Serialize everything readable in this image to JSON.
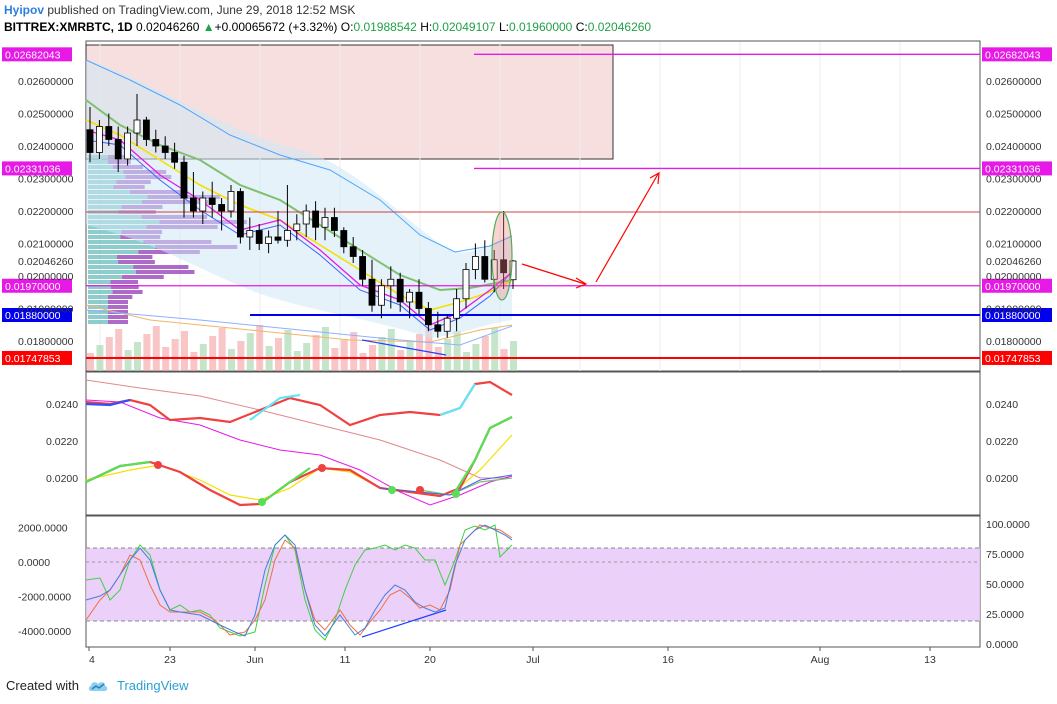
{
  "header": {
    "author": "Hyipov",
    "published_text": "published on TradingView.com, June 29, 2018 12:52 MSK",
    "symbol": "BITTREX:XMRBTC, 1D",
    "last": "0.02046260",
    "change": "+0.00065672 (+3.32%)",
    "o_label": "O:",
    "open": "0.01988542",
    "h_label": "H:",
    "high": "0.02049107",
    "l_label": "L:",
    "low": "0.01960000",
    "c_label": "C:",
    "close": "0.02046260"
  },
  "footer": {
    "created_with": "Created with",
    "brand": "TradingView",
    "logo_icon": "cloud-icon"
  },
  "colors": {
    "up": "#ffffff",
    "down": "#000000",
    "magenta": "#e619e6",
    "blue": "#0000ee",
    "red": "#ff0000",
    "yellow": "#f5e000",
    "green": "#7fc06f",
    "lightblue": "#4da6ff",
    "vp_purple": "#a050c0",
    "vp_teal": "#70c0c0",
    "zone_pink": "#f6d4d4",
    "band_lavender": "#e8c8f8"
  },
  "chart_data": [
    {
      "type": "candlestick",
      "panel": "price",
      "y_ticks": [
        "0.02600000",
        "0.02500000",
        "0.02400000",
        "0.02300000",
        "0.02200000",
        "0.02100000",
        "0.02046260",
        "0.02000000",
        "0.01900000",
        "0.01800000"
      ],
      "x_ticks": [
        "4",
        "23",
        "Jun",
        "11",
        "20",
        "Jul",
        "16",
        "Aug",
        "13"
      ],
      "ylim": [
        0.0172,
        0.0272
      ],
      "levels": [
        {
          "value": 0.02682043,
          "label": "0.02682043",
          "color": "#e619e6"
        },
        {
          "value": 0.02331036,
          "label": "0.02331036",
          "color": "#e619e6"
        },
        {
          "value": 0.0197,
          "label": "0.01970000",
          "color": "#e619e6"
        },
        {
          "value": 0.0188,
          "label": "0.01880000",
          "color": "#0000ee"
        },
        {
          "value": 0.01747853,
          "label": "0.01747853",
          "color": "#ff0000"
        }
      ],
      "last_price_label": "0.02046260",
      "candles": [
        [
          0.0245,
          0.0252,
          0.0235,
          0.0238
        ],
        [
          0.0238,
          0.0248,
          0.0236,
          0.0246
        ],
        [
          0.0246,
          0.025,
          0.024,
          0.0242
        ],
        [
          0.0242,
          0.0246,
          0.0232,
          0.0236
        ],
        [
          0.0236,
          0.0246,
          0.0234,
          0.0244
        ],
        [
          0.0244,
          0.0256,
          0.024,
          0.0248
        ],
        [
          0.0248,
          0.0249,
          0.024,
          0.0242
        ],
        [
          0.0242,
          0.0245,
          0.0238,
          0.024
        ],
        [
          0.024,
          0.0243,
          0.0236,
          0.0238
        ],
        [
          0.0238,
          0.0241,
          0.0233,
          0.0235
        ],
        [
          0.0235,
          0.0237,
          0.0218,
          0.0224
        ],
        [
          0.0224,
          0.0232,
          0.0218,
          0.022
        ],
        [
          0.022,
          0.0226,
          0.0216,
          0.0224
        ],
        [
          0.0224,
          0.0229,
          0.0218,
          0.0222
        ],
        [
          0.0222,
          0.0224,
          0.0214,
          0.022
        ],
        [
          0.022,
          0.0228,
          0.0218,
          0.0226
        ],
        [
          0.0226,
          0.0227,
          0.021,
          0.0212
        ],
        [
          0.0212,
          0.0218,
          0.0208,
          0.0214
        ],
        [
          0.0214,
          0.0216,
          0.0208,
          0.021
        ],
        [
          0.021,
          0.0214,
          0.0207,
          0.0212
        ],
        [
          0.0212,
          0.022,
          0.021,
          0.0211
        ],
        [
          0.0211,
          0.0228,
          0.0209,
          0.0214
        ],
        [
          0.0214,
          0.0219,
          0.0211,
          0.0216
        ],
        [
          0.0216,
          0.0222,
          0.0212,
          0.022
        ],
        [
          0.022,
          0.0223,
          0.0211,
          0.0215
        ],
        [
          0.0215,
          0.0221,
          0.0211,
          0.0218
        ],
        [
          0.0218,
          0.0221,
          0.0212,
          0.0214
        ],
        [
          0.0214,
          0.0215,
          0.0207,
          0.0209
        ],
        [
          0.0209,
          0.0212,
          0.0204,
          0.0206
        ],
        [
          0.0206,
          0.0208,
          0.0197,
          0.0199
        ],
        [
          0.0199,
          0.0205,
          0.0189,
          0.0191
        ],
        [
          0.0191,
          0.0199,
          0.0187,
          0.0197
        ],
        [
          0.0197,
          0.0203,
          0.019,
          0.0199
        ],
        [
          0.0199,
          0.0201,
          0.0189,
          0.0192
        ],
        [
          0.0192,
          0.0196,
          0.0187,
          0.0195
        ],
        [
          0.0195,
          0.0199,
          0.0188,
          0.019
        ],
        [
          0.019,
          0.0192,
          0.0183,
          0.0185
        ],
        [
          0.0185,
          0.0189,
          0.0181,
          0.0183
        ],
        [
          0.0183,
          0.0188,
          0.0181,
          0.0187
        ],
        [
          0.0187,
          0.0196,
          0.0183,
          0.0193
        ],
        [
          0.0193,
          0.0204,
          0.019,
          0.0202
        ],
        [
          0.0202,
          0.021,
          0.0199,
          0.0206
        ],
        [
          0.0206,
          0.0211,
          0.0198,
          0.0199
        ],
        [
          0.0199,
          0.0208,
          0.0195,
          0.0205
        ],
        [
          0.0205,
          0.022,
          0.0196,
          0.0201
        ],
        [
          0.01988542,
          0.02049107,
          0.0196,
          0.0204626
        ]
      ]
    },
    {
      "type": "line",
      "panel": "indicator-ma",
      "y_ticks": [
        "0.0240",
        "0.0220",
        "0.0200"
      ],
      "ylim": [
        0.0183,
        0.0258
      ]
    },
    {
      "type": "line",
      "panel": "oscillator",
      "y_ticks_left": [
        "2000.0000",
        "0.0000",
        "-2000.0000",
        "-4000.0000"
      ],
      "y_ticks_right": [
        "100.0000",
        "75.0000",
        "50.0000",
        "25.0000",
        "0.0000"
      ],
      "ylim_right": [
        0,
        100
      ]
    }
  ]
}
